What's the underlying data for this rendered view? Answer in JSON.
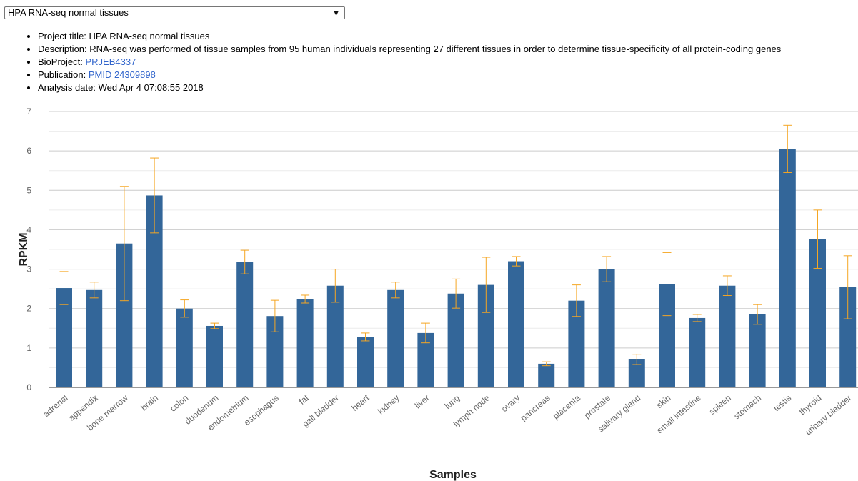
{
  "dataset_select": {
    "value": "HPA RNA-seq normal tissues",
    "chevron_icon": "chevron-down-icon"
  },
  "info": {
    "project_title_label": "Project title:",
    "project_title": "HPA RNA-seq normal tissues",
    "description_label": "Description:",
    "description": "RNA-seq was performed of tissue samples from 95 human individuals representing 27 different tissues in order to determine tissue-specificity of all protein-coding genes",
    "bioproject_label": "BioProject:",
    "bioproject": "PRJEB4337",
    "publication_label": "Publication:",
    "publication": "PMID 24309898",
    "analysis_date_label": "Analysis date:",
    "analysis_date": "Wed Apr 4 07:08:55 2018"
  },
  "chart_data": {
    "type": "bar",
    "xlabel": "Samples",
    "ylabel": "RPKM",
    "ylim": [
      0,
      7
    ],
    "yticks": [
      0,
      1,
      2,
      3,
      4,
      5,
      6,
      7
    ],
    "grid": true,
    "bar_color": "#336699",
    "error_color": "#f5a623",
    "categories": [
      "adrenal",
      "appendix",
      "bone marrow",
      "brain",
      "colon",
      "duodenum",
      "endometrium",
      "esophagus",
      "fat",
      "gall bladder",
      "heart",
      "kidney",
      "liver",
      "lung",
      "lymph node",
      "ovary",
      "pancreas",
      "placenta",
      "prostate",
      "salivary gland",
      "skin",
      "small intestine",
      "spleen",
      "stomach",
      "testis",
      "thyroid",
      "urinary bladder"
    ],
    "values": [
      2.52,
      2.47,
      3.65,
      4.87,
      2.0,
      1.56,
      3.18,
      1.81,
      2.24,
      2.58,
      1.28,
      2.47,
      1.38,
      2.38,
      2.6,
      3.2,
      0.6,
      2.2,
      3.0,
      0.71,
      2.62,
      1.76,
      2.58,
      1.85,
      6.05,
      3.76,
      2.54
    ],
    "errors": [
      0.42,
      0.2,
      1.45,
      0.95,
      0.22,
      0.07,
      0.3,
      0.4,
      0.1,
      0.42,
      0.1,
      0.2,
      0.25,
      0.37,
      0.7,
      0.12,
      0.05,
      0.4,
      0.32,
      0.13,
      0.8,
      0.09,
      0.25,
      0.25,
      0.6,
      0.74,
      0.8
    ]
  }
}
